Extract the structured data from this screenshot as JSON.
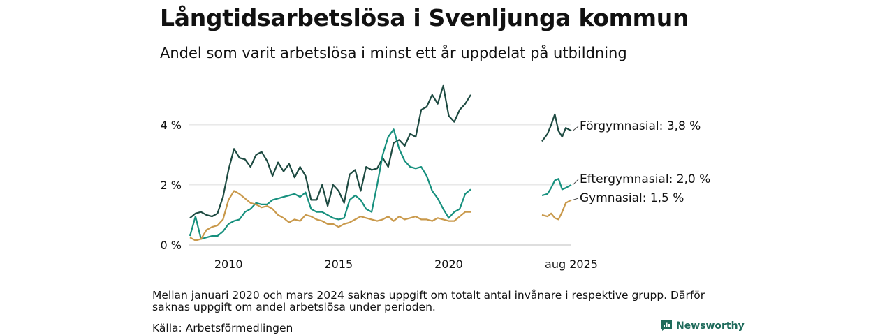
{
  "title": "Långtidsarbetslösa i Svenljunga kommun",
  "subtitle": "Andel som varit arbetslösa i minst ett år uppdelat på utbildning",
  "footnote": "Mellan januari 2020 och mars 2024 saknas uppgift om totalt antal invånare i respektive grupp. Därför saknas uppgift om andel arbetslösa under perioden.",
  "source": "Källa: Arbetsförmedlingen",
  "brand": "Newsworthy",
  "colors": {
    "forgymnasial": "#1d4a41",
    "eftergymnasial": "#17907e",
    "gymnasial": "#c9994b",
    "grid": "#dcdcdc",
    "brand": "#1f6b5b"
  },
  "chart_data": {
    "type": "line",
    "x_axis": {
      "ticks": [
        "2010",
        "2015",
        "2020",
        "aug 2025"
      ],
      "range": [
        "2008-04",
        "2021-01",
        "2024-04",
        "2025-08"
      ]
    },
    "ylim": [
      0,
      5.6
    ],
    "y_ticks": [
      {
        "value": 0,
        "label": "0 %"
      },
      {
        "value": 2,
        "label": "2 %"
      },
      {
        "value": 4,
        "label": "4 %"
      }
    ],
    "grid": true,
    "segments": [
      {
        "start": "2008-04",
        "end": "2021-01"
      },
      {
        "start": "2024-04",
        "end": "2025-08"
      }
    ],
    "series": [
      {
        "key": "forgymnasial",
        "name": "Förgymnasial",
        "end_label": "Förgymnasial: 3,8 %",
        "points": [
          [
            "2008-04",
            0.9
          ],
          [
            "2008-07",
            1.05
          ],
          [
            "2008-10",
            1.1
          ],
          [
            "2009-01",
            1.0
          ],
          [
            "2009-04",
            0.95
          ],
          [
            "2009-07",
            1.05
          ],
          [
            "2009-10",
            1.6
          ],
          [
            "2010-01",
            2.5
          ],
          [
            "2010-04",
            3.2
          ],
          [
            "2010-07",
            2.9
          ],
          [
            "2010-10",
            2.85
          ],
          [
            "2011-01",
            2.6
          ],
          [
            "2011-04",
            3.0
          ],
          [
            "2011-07",
            3.1
          ],
          [
            "2011-10",
            2.8
          ],
          [
            "2012-01",
            2.3
          ],
          [
            "2012-04",
            2.75
          ],
          [
            "2012-07",
            2.45
          ],
          [
            "2012-10",
            2.7
          ],
          [
            "2013-01",
            2.25
          ],
          [
            "2013-04",
            2.6
          ],
          [
            "2013-07",
            2.3
          ],
          [
            "2013-10",
            1.5
          ],
          [
            "2014-01",
            1.5
          ],
          [
            "2014-04",
            2.0
          ],
          [
            "2014-07",
            1.3
          ],
          [
            "2014-10",
            2.0
          ],
          [
            "2015-01",
            1.8
          ],
          [
            "2015-04",
            1.4
          ],
          [
            "2015-07",
            2.35
          ],
          [
            "2015-10",
            2.5
          ],
          [
            "2016-01",
            1.8
          ],
          [
            "2016-04",
            2.6
          ],
          [
            "2016-07",
            2.5
          ],
          [
            "2016-10",
            2.55
          ],
          [
            "2017-01",
            2.9
          ],
          [
            "2017-04",
            2.6
          ],
          [
            "2017-07",
            3.4
          ],
          [
            "2017-10",
            3.5
          ],
          [
            "2018-01",
            3.3
          ],
          [
            "2018-04",
            3.7
          ],
          [
            "2018-07",
            3.6
          ],
          [
            "2018-10",
            4.5
          ],
          [
            "2019-01",
            4.6
          ],
          [
            "2019-04",
            5.0
          ],
          [
            "2019-07",
            4.7
          ],
          [
            "2019-10",
            5.3
          ],
          [
            "2020-01",
            4.3
          ],
          [
            "2020-04",
            4.1
          ],
          [
            "2020-07",
            4.5
          ],
          [
            "2020-10",
            4.7
          ],
          [
            "2021-01",
            5.0
          ],
          [
            "2024-04",
            3.45
          ],
          [
            "2024-07",
            3.7
          ],
          [
            "2024-09",
            4.0
          ],
          [
            "2024-11",
            4.35
          ],
          [
            "2025-01",
            3.8
          ],
          [
            "2025-03",
            3.6
          ],
          [
            "2025-05",
            3.9
          ],
          [
            "2025-08",
            3.8
          ]
        ]
      },
      {
        "key": "eftergymnasial",
        "name": "Eftergymnasial",
        "end_label": "Eftergymnasial: 2,0 %",
        "points": [
          [
            "2008-04",
            0.3
          ],
          [
            "2008-07",
            0.95
          ],
          [
            "2008-10",
            0.2
          ],
          [
            "2009-01",
            0.25
          ],
          [
            "2009-04",
            0.3
          ],
          [
            "2009-07",
            0.3
          ],
          [
            "2009-10",
            0.45
          ],
          [
            "2010-01",
            0.7
          ],
          [
            "2010-04",
            0.8
          ],
          [
            "2010-07",
            0.85
          ],
          [
            "2010-10",
            1.1
          ],
          [
            "2011-01",
            1.2
          ],
          [
            "2011-04",
            1.4
          ],
          [
            "2011-07",
            1.35
          ],
          [
            "2011-10",
            1.35
          ],
          [
            "2012-01",
            1.5
          ],
          [
            "2012-04",
            1.55
          ],
          [
            "2012-07",
            1.6
          ],
          [
            "2012-10",
            1.65
          ],
          [
            "2013-01",
            1.7
          ],
          [
            "2013-04",
            1.6
          ],
          [
            "2013-07",
            1.75
          ],
          [
            "2013-10",
            1.2
          ],
          [
            "2014-01",
            1.1
          ],
          [
            "2014-04",
            1.1
          ],
          [
            "2014-07",
            1.0
          ],
          [
            "2014-10",
            0.9
          ],
          [
            "2015-01",
            0.85
          ],
          [
            "2015-04",
            0.9
          ],
          [
            "2015-07",
            1.5
          ],
          [
            "2015-10",
            1.65
          ],
          [
            "2016-01",
            1.5
          ],
          [
            "2016-04",
            1.2
          ],
          [
            "2016-07",
            1.1
          ],
          [
            "2016-10",
            2.0
          ],
          [
            "2017-01",
            3.0
          ],
          [
            "2017-04",
            3.6
          ],
          [
            "2017-07",
            3.85
          ],
          [
            "2017-10",
            3.2
          ],
          [
            "2018-01",
            2.8
          ],
          [
            "2018-04",
            2.6
          ],
          [
            "2018-07",
            2.55
          ],
          [
            "2018-10",
            2.6
          ],
          [
            "2019-01",
            2.3
          ],
          [
            "2019-04",
            1.8
          ],
          [
            "2019-07",
            1.55
          ],
          [
            "2019-10",
            1.2
          ],
          [
            "2020-01",
            0.9
          ],
          [
            "2020-04",
            1.1
          ],
          [
            "2020-07",
            1.2
          ],
          [
            "2020-10",
            1.7
          ],
          [
            "2021-01",
            1.85
          ],
          [
            "2024-04",
            1.65
          ],
          [
            "2024-07",
            1.7
          ],
          [
            "2024-09",
            1.9
          ],
          [
            "2024-11",
            2.15
          ],
          [
            "2025-01",
            2.2
          ],
          [
            "2025-03",
            1.85
          ],
          [
            "2025-05",
            1.9
          ],
          [
            "2025-08",
            2.0
          ]
        ]
      },
      {
        "key": "gymnasial",
        "name": "Gymnasial",
        "end_label": "Gymnasial: 1,5 %",
        "points": [
          [
            "2008-04",
            0.25
          ],
          [
            "2008-07",
            0.15
          ],
          [
            "2008-10",
            0.2
          ],
          [
            "2009-01",
            0.5
          ],
          [
            "2009-04",
            0.6
          ],
          [
            "2009-07",
            0.65
          ],
          [
            "2009-10",
            0.85
          ],
          [
            "2010-01",
            1.5
          ],
          [
            "2010-04",
            1.8
          ],
          [
            "2010-07",
            1.7
          ],
          [
            "2010-10",
            1.55
          ],
          [
            "2011-01",
            1.4
          ],
          [
            "2011-04",
            1.35
          ],
          [
            "2011-07",
            1.25
          ],
          [
            "2011-10",
            1.3
          ],
          [
            "2012-01",
            1.2
          ],
          [
            "2012-04",
            1.0
          ],
          [
            "2012-07",
            0.9
          ],
          [
            "2012-10",
            0.75
          ],
          [
            "2013-01",
            0.85
          ],
          [
            "2013-04",
            0.8
          ],
          [
            "2013-07",
            1.0
          ],
          [
            "2013-10",
            0.95
          ],
          [
            "2014-01",
            0.85
          ],
          [
            "2014-04",
            0.8
          ],
          [
            "2014-07",
            0.7
          ],
          [
            "2014-10",
            0.7
          ],
          [
            "2015-01",
            0.6
          ],
          [
            "2015-04",
            0.7
          ],
          [
            "2015-07",
            0.75
          ],
          [
            "2015-10",
            0.85
          ],
          [
            "2016-01",
            0.95
          ],
          [
            "2016-04",
            0.9
          ],
          [
            "2016-07",
            0.85
          ],
          [
            "2016-10",
            0.8
          ],
          [
            "2017-01",
            0.85
          ],
          [
            "2017-04",
            0.95
          ],
          [
            "2017-07",
            0.8
          ],
          [
            "2017-10",
            0.95
          ],
          [
            "2018-01",
            0.85
          ],
          [
            "2018-04",
            0.9
          ],
          [
            "2018-07",
            0.95
          ],
          [
            "2018-10",
            0.85
          ],
          [
            "2019-01",
            0.85
          ],
          [
            "2019-04",
            0.8
          ],
          [
            "2019-07",
            0.9
          ],
          [
            "2019-10",
            0.85
          ],
          [
            "2020-01",
            0.8
          ],
          [
            "2020-04",
            0.8
          ],
          [
            "2020-07",
            0.95
          ],
          [
            "2020-10",
            1.1
          ],
          [
            "2021-01",
            1.1
          ],
          [
            "2024-04",
            1.0
          ],
          [
            "2024-07",
            0.95
          ],
          [
            "2024-09",
            1.05
          ],
          [
            "2024-11",
            0.9
          ],
          [
            "2025-01",
            0.85
          ],
          [
            "2025-03",
            1.1
          ],
          [
            "2025-05",
            1.4
          ],
          [
            "2025-08",
            1.5
          ]
        ]
      }
    ]
  }
}
